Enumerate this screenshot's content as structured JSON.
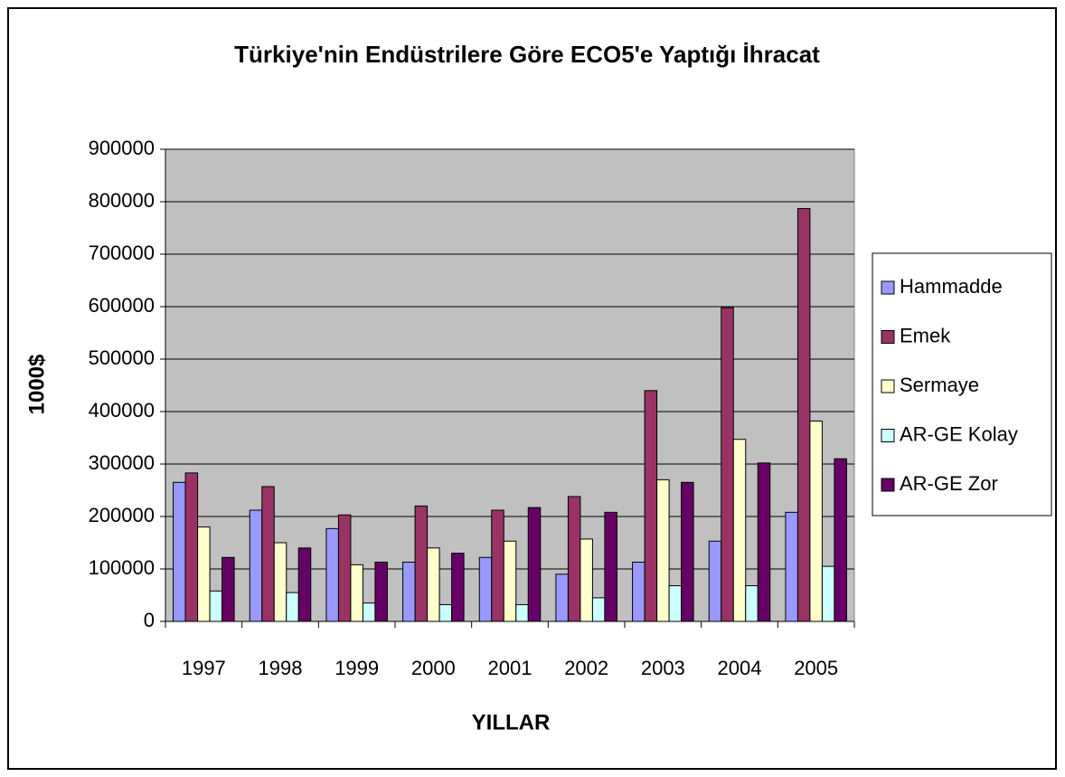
{
  "chart_data": {
    "type": "bar",
    "title": "Türkiye'nin Endüstrilere Göre ECO5'e Yaptığı İhracat",
    "x_label": "YILLAR",
    "y_label": "1000$",
    "categories": [
      "1997",
      "1998",
      "1999",
      "2000",
      "2001",
      "2002",
      "2003",
      "2004",
      "2005"
    ],
    "series": [
      {
        "name": "Hammadde",
        "color": "#9999ff",
        "values": [
          265000,
          212000,
          177000,
          113000,
          122000,
          90000,
          113000,
          153000,
          208000
        ]
      },
      {
        "name": "Emek",
        "color": "#993366",
        "values": [
          283000,
          257000,
          203000,
          220000,
          212000,
          238000,
          440000,
          598000,
          787000
        ]
      },
      {
        "name": "Sermaye",
        "color": "#ffffcc",
        "values": [
          180000,
          150000,
          108000,
          140000,
          153000,
          157000,
          270000,
          347000,
          382000
        ]
      },
      {
        "name": "AR-GE Kolay",
        "color": "#ccffff",
        "values": [
          58000,
          55000,
          35000,
          32000,
          32000,
          45000,
          68000,
          68000,
          105000
        ]
      },
      {
        "name": "AR-GE Zor",
        "color": "#660066",
        "values": [
          122000,
          140000,
          113000,
          130000,
          217000,
          208000,
          265000,
          302000,
          310000
        ]
      }
    ],
    "ylim": [
      0,
      900000
    ],
    "yticks": [
      0,
      100000,
      200000,
      300000,
      400000,
      500000,
      600000,
      700000,
      800000,
      900000
    ],
    "grid": true,
    "legend": "right",
    "plot_background": "#c0c0c0"
  }
}
